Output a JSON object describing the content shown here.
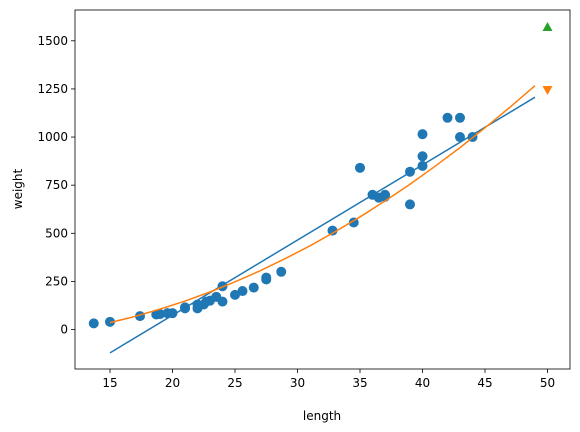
{
  "chart_data": {
    "type": "scatter",
    "title": "",
    "xlabel": "length",
    "ylabel": "weight",
    "xlim": [
      12.2,
      51.8
    ],
    "ylim": [
      -205,
      1660
    ],
    "grid": false,
    "legend": "none",
    "x_ticks": [
      15,
      20,
      25,
      30,
      35,
      40,
      45,
      50
    ],
    "y_ticks": [
      0,
      250,
      500,
      750,
      1000,
      1250,
      1500
    ],
    "colors": {
      "scatter": "#1f77b4",
      "linear_fit": "#1f77b4",
      "poly_fit": "#ff7f0e",
      "predict_poly": "#ff7f0e",
      "predict_linear": "#2ca02c"
    },
    "series": [
      {
        "kind": "points",
        "marker": "circle",
        "x": [
          13.7,
          15.0,
          17.4,
          18.7,
          19.0,
          19.6,
          20.0,
          21.0,
          21.0,
          22.0,
          22.0,
          22.5,
          22.7,
          23.0,
          23.5,
          24.0,
          24.0,
          25.0,
          25.6,
          26.5,
          27.5,
          27.5,
          28.7,
          32.8,
          34.5,
          35.0,
          36.0,
          36.5,
          37.0,
          37.0,
          39.0,
          39.0,
          40.0,
          40.0,
          40.0,
          42.0,
          43.0,
          43.0,
          44.0
        ],
        "y": [
          32,
          40,
          70,
          78,
          80,
          85,
          85,
          110,
          115,
          130,
          110,
          130,
          145,
          150,
          170,
          225,
          145,
          180,
          200,
          218,
          260,
          270,
          300,
          514,
          556,
          840,
          700,
          685,
          700,
          690,
          650,
          820,
          850,
          900,
          1015,
          1100,
          1000,
          1100,
          1000
        ]
      },
      {
        "kind": "line",
        "x": [
          15,
          49
        ],
        "y": [
          -121,
          1207
        ]
      },
      {
        "kind": "curve",
        "x": [
          15,
          17,
          19,
          21,
          23,
          25,
          27,
          29,
          31,
          33,
          35,
          37,
          39,
          41,
          43,
          45,
          47,
          49
        ],
        "y": [
          36,
          68,
          106,
          148,
          195,
          248,
          305,
          368,
          435,
          508,
          585,
          668,
          755,
          848,
          945,
          1048,
          1155,
          1267
        ]
      },
      {
        "kind": "points",
        "marker": "triangle-down",
        "x": [
          50
        ],
        "y": [
          1242
        ]
      },
      {
        "kind": "points",
        "marker": "triangle-up",
        "x": [
          50
        ],
        "y": [
          1574
        ]
      }
    ]
  }
}
